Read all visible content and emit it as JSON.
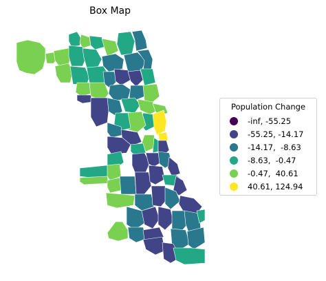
{
  "map": {
    "title": "Box Map"
  },
  "legend": {
    "title": "Population Change",
    "items": [
      {
        "label": "-inf, -55.25",
        "color": "#440154"
      },
      {
        "label": "-55.25, -14.17",
        "color": "#414487"
      },
      {
        "label": "-14.17,  -8.63",
        "color": "#2a788e"
      },
      {
        "label": "-8.63,  -0.47",
        "color": "#22a884"
      },
      {
        "label": "-0.47,  40.61",
        "color": "#7ad151"
      },
      {
        "label": "40.61, 124.94",
        "color": "#fde725"
      }
    ]
  }
}
